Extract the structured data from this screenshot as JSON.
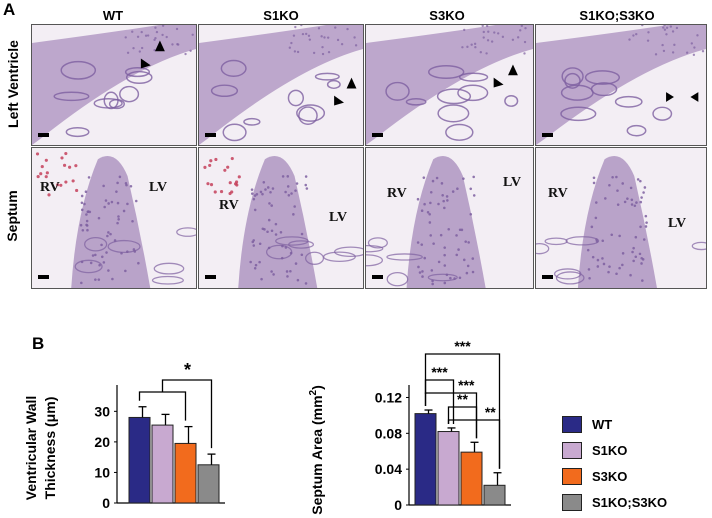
{
  "panel_a": {
    "letter": "A",
    "columns": [
      "WT",
      "S1KO",
      "S3KO",
      "S1KO;S3KO"
    ],
    "rows": [
      "Left Ventricle",
      "Septum"
    ],
    "septum_labels": [
      {
        "rv": "RV",
        "lv": "LV"
      },
      {
        "rv": "RV",
        "lv": "LV"
      },
      {
        "rv": "RV",
        "lv": "LV"
      },
      {
        "rv": "RV",
        "lv": "LV"
      }
    ],
    "colors": {
      "tissue": "#b39ac4",
      "nuclei": "#7d5fa0",
      "background": "#f3eef4",
      "blood": "#c4405a"
    }
  },
  "panel_b": {
    "letter": "B",
    "legend": [
      {
        "label": "WT",
        "color": "#2a2a86"
      },
      {
        "label": "S1KO",
        "color": "#c8a9d0"
      },
      {
        "label": "S3KO",
        "color": "#f26b1d"
      },
      {
        "label": "S1KO;S3KO",
        "color": "#8a8a8a"
      }
    ]
  },
  "chart_data": [
    {
      "type": "bar",
      "categories": [
        "WT",
        "S1KO",
        "S3KO",
        "S1KO;S3KO"
      ],
      "values": [
        28,
        25.5,
        19.5,
        12.5
      ],
      "errors": [
        3.5,
        3.5,
        5.5,
        3.5
      ],
      "ylabel_line1": "Ventricular Wall",
      "ylabel_line2": "Thickness (μm)",
      "ylim": [
        0,
        36
      ],
      "yticks": [
        "0",
        "10",
        "20",
        "30"
      ],
      "ytick_values": [
        0,
        10,
        20,
        30
      ],
      "significance": [
        {
          "from": [
            0,
            2
          ],
          "to": 3,
          "label": "*"
        }
      ]
    },
    {
      "type": "bar",
      "categories": [
        "WT",
        "S1KO",
        "S3KO",
        "S1KO;S3KO"
      ],
      "values": [
        0.102,
        0.082,
        0.059,
        0.022
      ],
      "errors": [
        0.004,
        0.004,
        0.011,
        0.014
      ],
      "ylabel_main": "Septum Area (mm",
      "ylabel_sup": "2",
      "ylabel_close": ")",
      "ylim": [
        0,
        0.125
      ],
      "yticks": [
        "0",
        "0.04",
        "0.08",
        "0.12"
      ],
      "ytick_values": [
        0,
        0.04,
        0.08,
        0.12
      ],
      "significance": [
        {
          "from": 0,
          "to": 3,
          "label": "***"
        },
        {
          "from": 0,
          "to": 1,
          "label": "***"
        },
        {
          "from": 0,
          "to": 2,
          "label": "***"
        },
        {
          "from": 1,
          "to": 2,
          "label": "**"
        },
        {
          "from": 1,
          "to": 3,
          "label": "**"
        }
      ]
    }
  ]
}
